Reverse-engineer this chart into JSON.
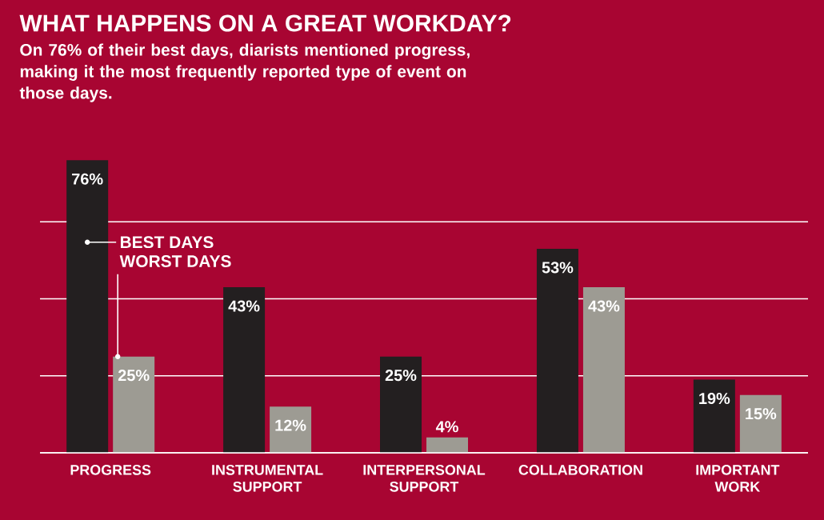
{
  "chart_data": {
    "type": "bar",
    "title": "WHAT HAPPENS ON A GREAT WORKDAY?",
    "subtitle": "On 76% of their best days, diarists mentioned progress, making it the most frequently reported type of event on those days.",
    "categories": [
      "PROGRESS",
      "INSTRUMENTAL SUPPORT",
      "INTERPERSONAL SUPPORT",
      "COLLABORATION",
      "IMPORTANT WORK"
    ],
    "series": [
      {
        "name": "BEST DAYS",
        "color": "#231f20",
        "values": [
          76,
          43,
          25,
          53,
          19
        ],
        "value_labels": [
          "76%",
          "43%",
          "25%",
          "53%",
          "19%"
        ]
      },
      {
        "name": "WORST DAYS",
        "color": "#9d9b93",
        "values": [
          25,
          12,
          4,
          43,
          15
        ],
        "value_labels": [
          "25%",
          "12%",
          "4%",
          "43%",
          "15%"
        ]
      }
    ],
    "yticks": [
      {
        "value": 0,
        "label": null
      },
      {
        "value": 20,
        "label": null
      },
      {
        "value": 40,
        "label": null
      },
      {
        "value": 60,
        "label": null
      }
    ],
    "grid": "y",
    "tick_labels": "x"
  }
}
